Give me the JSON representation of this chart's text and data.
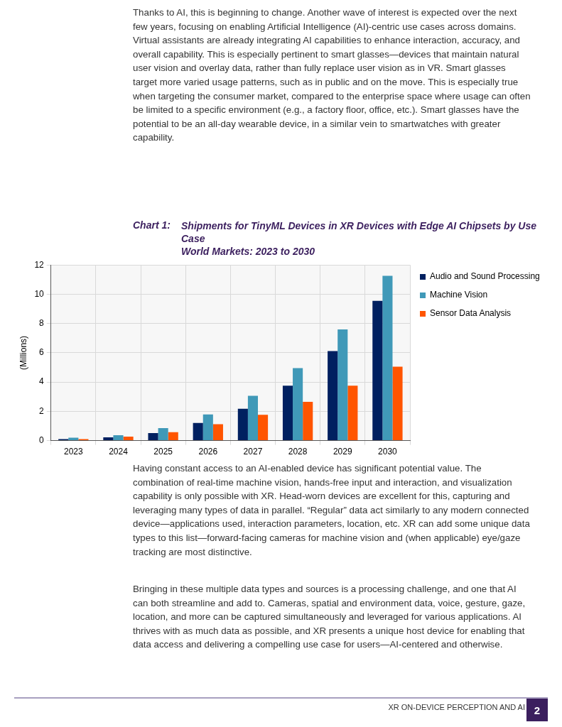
{
  "chart_data": {
    "type": "bar",
    "title": "Shipments for TinyML Devices in XR Devices with Edge AI Chipsets by Use Case",
    "subtitle": "World Markets: 2023 to 2030",
    "ylabel": "(Millions)",
    "categories": [
      "2023",
      "2024",
      "2025",
      "2026",
      "2027",
      "2028",
      "2029",
      "2030"
    ],
    "series": [
      {
        "name": "Audio and Sound Processing",
        "color": "#002060",
        "values": [
          0.1,
          0.22,
          0.52,
          1.2,
          2.18,
          3.75,
          6.12,
          9.55
        ]
      },
      {
        "name": "Machine Vision",
        "color": "#4099b8",
        "values": [
          0.2,
          0.37,
          0.85,
          1.79,
          3.06,
          4.95,
          7.6,
          11.26
        ]
      },
      {
        "name": "Sensor Data Analysis",
        "color": "#ff5500",
        "values": [
          0.1,
          0.27,
          0.57,
          1.12,
          1.76,
          2.65,
          3.75,
          5.05
        ]
      }
    ],
    "ylim": [
      0,
      12
    ],
    "yticks": [
      0,
      2,
      4,
      6,
      8,
      10,
      12
    ],
    "grid": true,
    "legend": "right",
    "annotations": [
      "Thanks to AI, this is beginning to change. Another wave of interest is expected over the next few years, focusing on enabling Artificial Intelligence (AI)-centric use cases across domains. Virtual assistants are already integrating AI capabilities to enhance interaction, accuracy, and overall capability. This is especially pertinent to smart glasses—devices that maintain natural user vision and overlay data, rather than fully replace user vision as in VR. Smart glasses target more varied usage patterns, such as in public and on the move. This is especially true when targeting the consumer market, compared to the enterprise space where usage can often be limited to a specific environment (e.g., a factory floor, office, etc.). Smart glasses have the potential to be an all-day wearable device, in a similar vein to smartwatches with greater capability.",
      "Chart 1:",
      "Having constant access to an AI-enabled device has significant potential value. The combination of real-time machine vision, hands-free input and interaction, and visualization capability is only possible with XR. Head-worn devices are excellent for this, capturing and leveraging many types of data in parallel. “Regular” data act similarly to any modern connected device—applications used, interaction parameters, location, etc. XR can add some unique data types to this list—forward-facing cameras for machine vision and (when applicable) eye/gaze tracking are most distinctive.",
      "Bringing in these multiple data types and sources is a processing challenge, and one that AI can both streamline and add to. Cameras, spatial and environment data, voice, gesture, gaze, location, and more can be captured simultaneously and leveraged for various applications. AI thrives with as much data as possible, and XR presents a unique host device for enabling that data access and delivering a compelling use case for users—AI-centered and otherwise.",
      "XR ON-DEVICE PERCEPTION AND AI",
      "2"
    ]
  }
}
